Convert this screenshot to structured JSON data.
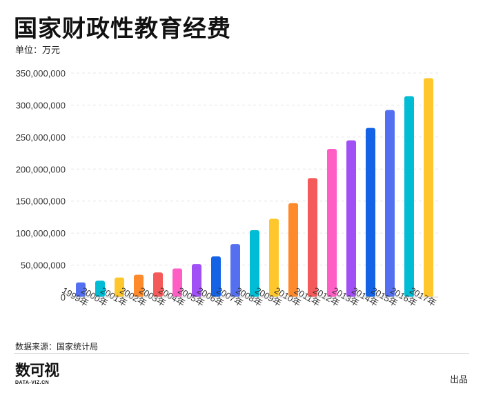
{
  "header": {
    "title": "国家财政性教育经费",
    "unit": "单位：万元"
  },
  "footer": {
    "source": "数据来源：国家统计局",
    "logo_main": "数可视",
    "logo_sub": "DATA-VIZ.CN",
    "credit": "出品"
  },
  "chart_data": {
    "type": "bar",
    "title": "国家财政性教育经费",
    "ylabel": "单位：万元",
    "xlabel": "",
    "ylim": [
      0,
      350000000
    ],
    "yticks": [
      0,
      50000000,
      100000000,
      150000000,
      200000000,
      250000000,
      300000000,
      350000000
    ],
    "ytick_labels": [
      "0",
      "50,000,000",
      "100,000,000",
      "150,000,000",
      "200,000,000",
      "250,000,000",
      "300,000,000",
      "350,000,000"
    ],
    "grid": true,
    "categories": [
      "1999年",
      "2000年",
      "2001年",
      "2002年",
      "2003年",
      "2004年",
      "2005年",
      "2006年",
      "2007年",
      "2008年",
      "2009年",
      "2010年",
      "2011年",
      "2012年",
      "2013年",
      "2014年",
      "2015年",
      "2016年",
      "2017年"
    ],
    "values": [
      22870000,
      25630000,
      30570000,
      34910000,
      38510000,
      44660000,
      51610000,
      63480000,
      82800000,
      104500000,
      122310000,
      146700000,
      185870000,
      231480000,
      244880000,
      264210000,
      292210000,
      313960000,
      342080000
    ],
    "colors": [
      "#5470f0",
      "#00bcd4",
      "#ffc72c",
      "#ff8a2b",
      "#f55a5a",
      "#ff5ec4",
      "#a050f5",
      "#1463e6",
      "#5470f0",
      "#00bcd4",
      "#ffc72c",
      "#ff8a2b",
      "#f55a5a",
      "#ff5ec4",
      "#a050f5",
      "#1463e6",
      "#5470f0",
      "#00bcd4",
      "#ffc72c"
    ]
  }
}
